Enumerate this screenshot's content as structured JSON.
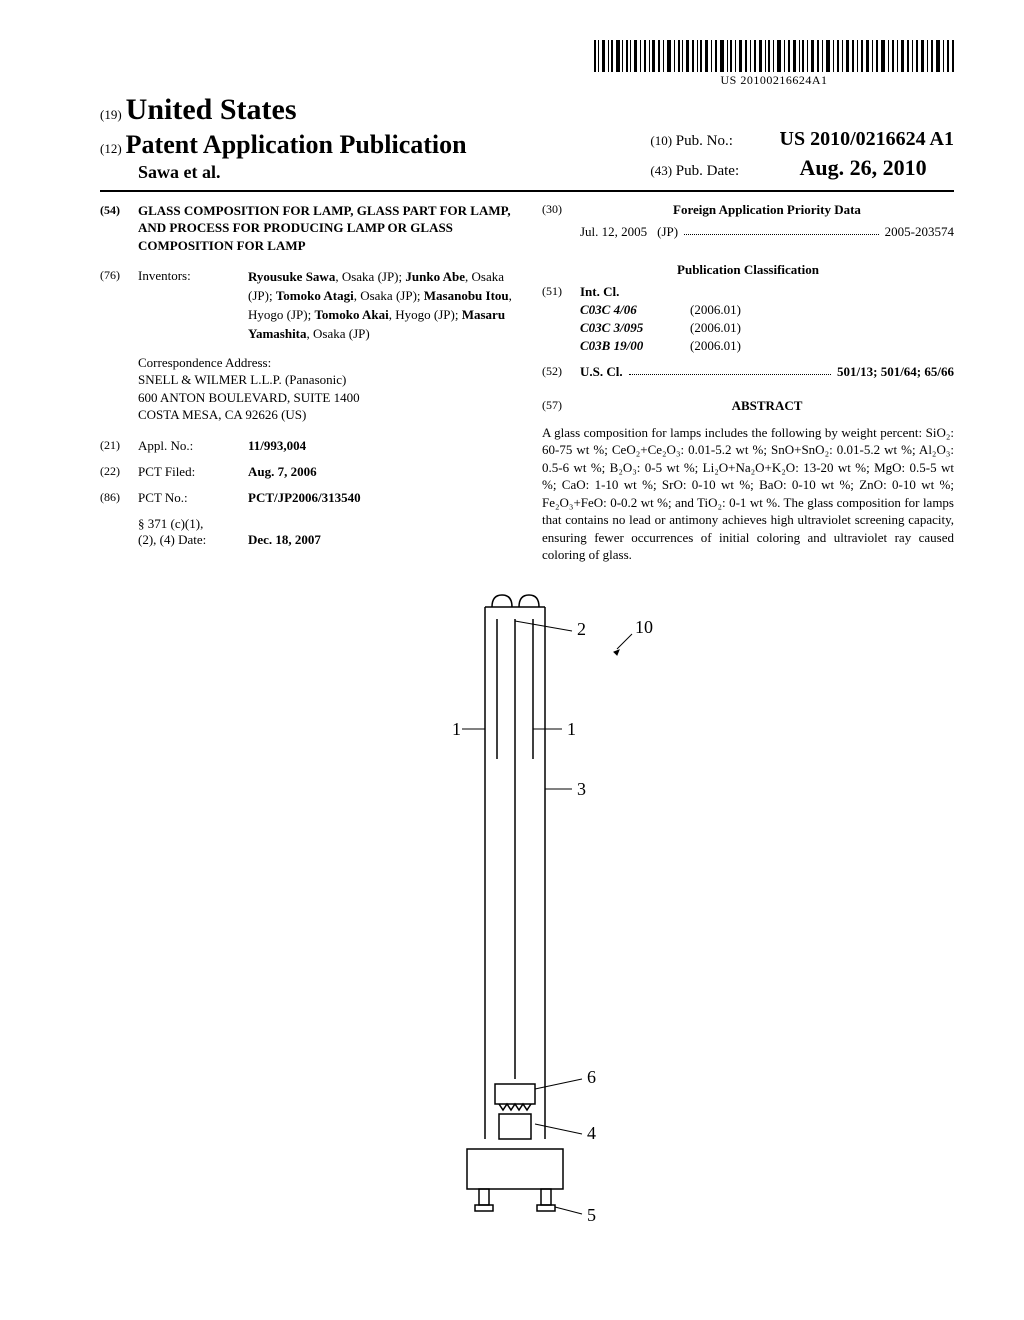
{
  "barcode_number": "US 20100216624A1",
  "header": {
    "prefix19": "(19)",
    "country": "United States",
    "prefix12": "(12)",
    "pub_type": "Patent Application Publication",
    "authors": "Sawa et al.",
    "pubno_prefix": "(10)",
    "pubno_label": "Pub. No.:",
    "pubno": "US 2010/0216624 A1",
    "pubdate_prefix": "(43)",
    "pubdate_label": "Pub. Date:",
    "pubdate": "Aug. 26, 2010"
  },
  "left": {
    "title_code": "(54)",
    "title": "GLASS COMPOSITION FOR LAMP, GLASS PART FOR LAMP, AND PROCESS FOR PRODUCING LAMP OR GLASS COMPOSITION FOR LAMP",
    "inventors_code": "(76)",
    "inventors_label": "Inventors:",
    "inventors_html": "<b>Ryousuke Sawa</b>, Osaka (JP); <b>Junko Abe</b>, Osaka (JP); <b>Tomoko Atagi</b>, Osaka (JP); <b>Masanobu Itou</b>, Hyogo (JP); <b>Tomoko Akai</b>, Hyogo (JP); <b>Masaru Yamashita</b>, Osaka (JP)",
    "corr_label": "Correspondence Address:",
    "corr_line1": "SNELL & WILMER L.L.P. (Panasonic)",
    "corr_line2": "600 ANTON BOULEVARD, SUITE 1400",
    "corr_line3": "COSTA MESA, CA 92626 (US)",
    "appl_code": "(21)",
    "appl_label": "Appl. No.:",
    "appl_no": "11/993,004",
    "filed_code": "(22)",
    "filed_label": "PCT Filed:",
    "filed_date": "Aug. 7, 2006",
    "pctno_code": "(86)",
    "pctno_label": "PCT No.:",
    "pct_no": "PCT/JP2006/313540",
    "s371_label": "§ 371 (c)(1),",
    "s371_label2": "(2), (4) Date:",
    "s371_date": "Dec. 18, 2007"
  },
  "right": {
    "priority_code": "(30)",
    "priority_heading": "Foreign Application Priority Data",
    "priority_date": "Jul. 12, 2005",
    "priority_country": "(JP)",
    "priority_no": "2005-203574",
    "class_heading": "Publication Classification",
    "intcl_code": "(51)",
    "intcl_label": "Int. Cl.",
    "intcl": [
      {
        "sym": "C03C 4/06",
        "ver": "(2006.01)"
      },
      {
        "sym": "C03C 3/095",
        "ver": "(2006.01)"
      },
      {
        "sym": "C03B 19/00",
        "ver": "(2006.01)"
      }
    ],
    "uscl_code": "(52)",
    "uscl_label": "U.S. Cl.",
    "uscl_value": "501/13; 501/64; 65/66",
    "abstract_code": "(57)",
    "abstract_heading": "ABSTRACT",
    "abstract_text": "A glass composition for lamps includes the following by weight percent: SiO₂: 60-75 wt %; CeO₂+Ce₂O₃: 0.01-5.2 wt %; SnO+SnO₂: 0.01-5.2 wt %; Al₂O₃: 0.5-6 wt %; B₂O₃: 0-5 wt %; Li₂O+Na₂O+K₂O: 13-20 wt %; MgO: 0.5-5 wt %; CaO: 1-10 wt %; SrO: 0-10 wt %; BaO: 0-10 wt %; ZnO: 0-10 wt %; Fe₂O₃+FeO: 0-0.2 wt %; and TiO₂: 0-1 wt %. The glass composition for lamps that contains no lead or antimony achieves high ultraviolet screening capacity, ensuring fewer occurrences of initial coloring and ultraviolet ray caused coloring of glass."
  },
  "figure": {
    "labels": [
      "1",
      "1",
      "2",
      "3",
      "4",
      "5",
      "6",
      "10"
    ],
    "stroke": "#000000",
    "stroke_width": 1.5
  }
}
